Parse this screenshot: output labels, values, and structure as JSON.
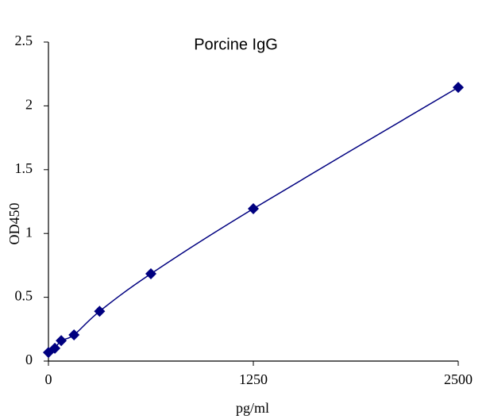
{
  "chart_data": {
    "type": "scatter",
    "title": "Porcine IgG",
    "x_label": "pg/ml",
    "y_label": "OD450",
    "series": [
      {
        "name": "Porcine IgG",
        "color": "#000080",
        "x": [
          0,
          39,
          78,
          156,
          312,
          625,
          1250,
          2500
        ],
        "values": [
          0.068,
          0.1,
          0.16,
          0.205,
          0.39,
          0.684,
          1.194,
          2.145
        ]
      }
    ],
    "xlim": [
      0,
      2500
    ],
    "xticks": [
      0,
      1250,
      2500
    ],
    "ylim": [
      0,
      2.5
    ],
    "yticks": [
      0,
      0.5,
      1,
      1.5,
      2,
      2.5
    ]
  }
}
